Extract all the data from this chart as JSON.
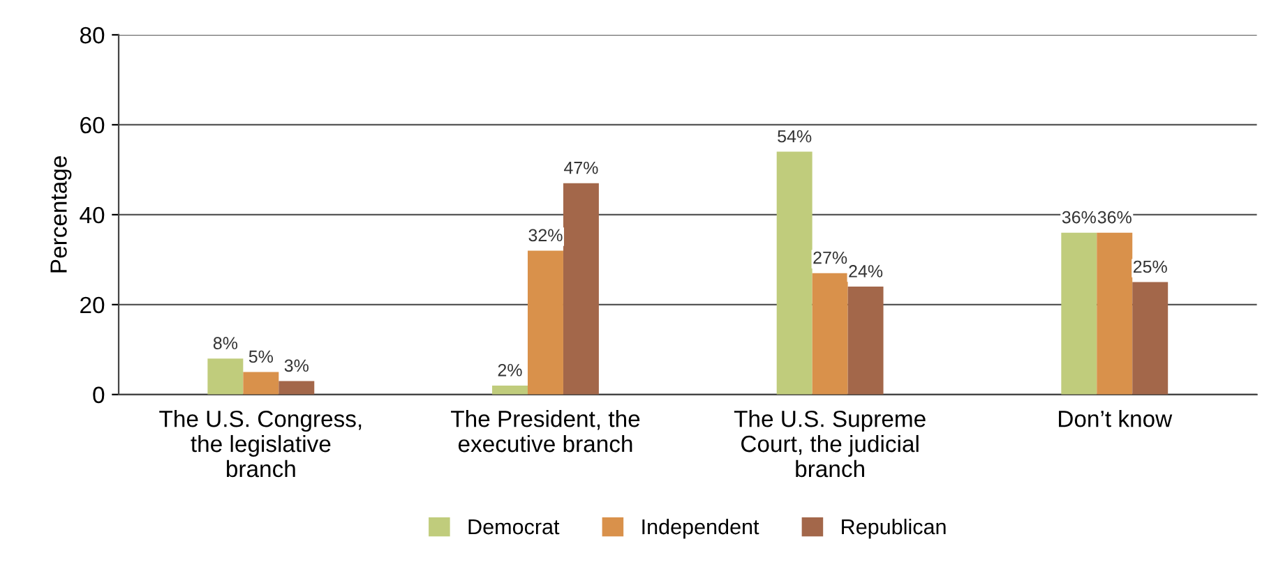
{
  "chart_data": {
    "type": "bar",
    "ylabel": "Percentage",
    "categories": [
      "The U.S. Congress,\nthe legislative\nbranch",
      "The President, the\nexecutive branch",
      "The U.S. Supreme\nCourt, the judicial\nbranch",
      "Don’t know"
    ],
    "series": [
      {
        "name": "Democrat",
        "color": "#c0cc7c",
        "values": [
          8,
          2,
          54,
          36
        ],
        "value_labels": [
          "8%",
          "2%",
          "54%",
          "36%"
        ]
      },
      {
        "name": "Independent",
        "color": "#d9914b",
        "values": [
          5,
          32,
          27,
          36
        ],
        "value_labels": [
          "5%",
          "32%",
          "27%",
          "36%"
        ]
      },
      {
        "name": "Republican",
        "color": "#a3674a",
        "values": [
          3,
          47,
          24,
          25
        ],
        "value_labels": [
          "3%",
          "47%",
          "24%",
          "25%"
        ]
      }
    ],
    "ylim": [
      0,
      80
    ],
    "yticks": [
      0,
      20,
      40,
      60,
      80
    ],
    "grid": "y",
    "legend": "bottom"
  }
}
